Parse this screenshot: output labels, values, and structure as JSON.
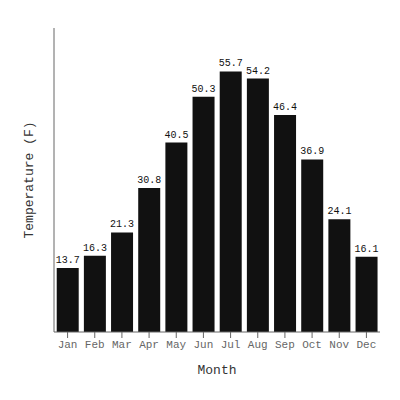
{
  "chart_data": {
    "type": "bar",
    "xlabel": "Month",
    "ylabel": "Temperature (F)",
    "categories": [
      "Jan",
      "Feb",
      "Mar",
      "Apr",
      "May",
      "Jun",
      "Jul",
      "Aug",
      "Sep",
      "Oct",
      "Nov",
      "Dec"
    ],
    "values": [
      13.7,
      16.3,
      21.3,
      30.8,
      40.5,
      50.3,
      55.7,
      54.2,
      46.4,
      36.9,
      24.1,
      16.1
    ],
    "color": "#111111",
    "ylim": [
      0,
      65
    ],
    "grid": false,
    "data_labels": true,
    "tick_labels": "x"
  }
}
